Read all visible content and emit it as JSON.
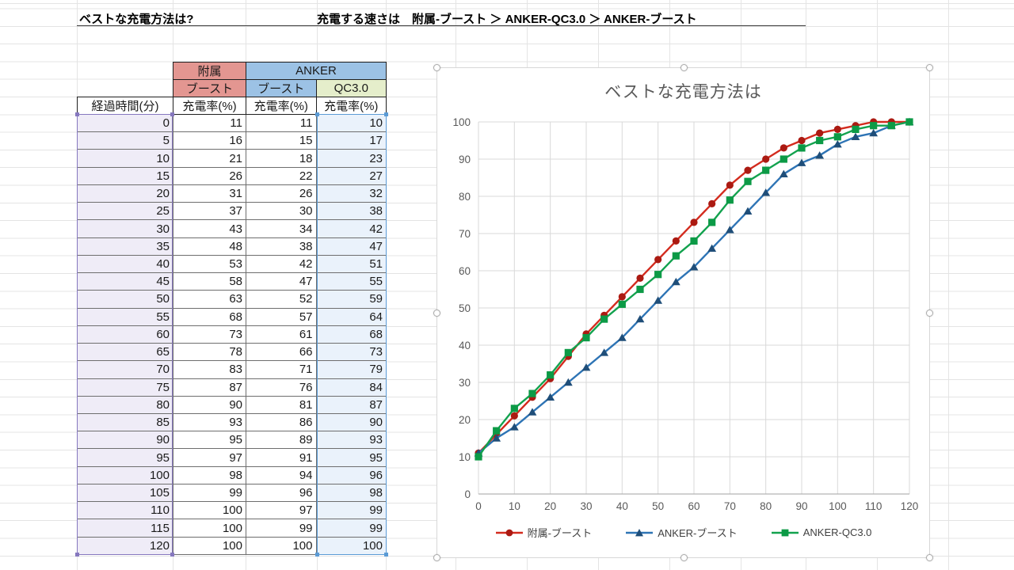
{
  "titles": {
    "question": "ベストな充電方法は?",
    "ranking": "充電する速さは　附属-ブースト ＞ ANKER-QC3.0 ＞ ANKER-ブースト"
  },
  "table": {
    "group_headers": [
      {
        "label": "附属",
        "color": "#e39691"
      },
      {
        "label": "ANKER",
        "color": "#9cc2e5"
      }
    ],
    "sub_headers": [
      {
        "label": "ブースト",
        "color": "#e39691"
      },
      {
        "label": "ブースト",
        "color": "#9cc2e5"
      },
      {
        "label": "QC3.0",
        "color": "#e5eecb"
      }
    ],
    "col_headers": [
      "経過時間(分)",
      "充電率(%)",
      "充電率(%)",
      "充電率(%)"
    ],
    "rows": [
      [
        0,
        11,
        11,
        10
      ],
      [
        5,
        16,
        15,
        17
      ],
      [
        10,
        21,
        18,
        23
      ],
      [
        15,
        26,
        22,
        27
      ],
      [
        20,
        31,
        26,
        32
      ],
      [
        25,
        37,
        30,
        38
      ],
      [
        30,
        43,
        34,
        42
      ],
      [
        35,
        48,
        38,
        47
      ],
      [
        40,
        53,
        42,
        51
      ],
      [
        45,
        58,
        47,
        55
      ],
      [
        50,
        63,
        52,
        59
      ],
      [
        55,
        68,
        57,
        64
      ],
      [
        60,
        73,
        61,
        68
      ],
      [
        65,
        78,
        66,
        73
      ],
      [
        70,
        83,
        71,
        79
      ],
      [
        75,
        87,
        76,
        84
      ],
      [
        80,
        90,
        81,
        87
      ],
      [
        85,
        93,
        86,
        90
      ],
      [
        90,
        95,
        89,
        93
      ],
      [
        95,
        97,
        91,
        95
      ],
      [
        100,
        98,
        94,
        96
      ],
      [
        105,
        99,
        96,
        98
      ],
      [
        110,
        100,
        97,
        99
      ],
      [
        115,
        100,
        99,
        99
      ],
      [
        120,
        100,
        100,
        100
      ]
    ]
  },
  "chart_data": {
    "type": "line",
    "title": "ベストな充電方法は",
    "x": [
      0,
      5,
      10,
      15,
      20,
      25,
      30,
      35,
      40,
      45,
      50,
      55,
      60,
      65,
      70,
      75,
      80,
      85,
      90,
      95,
      100,
      105,
      110,
      115,
      120
    ],
    "series": [
      {
        "name": "附属-ブースト",
        "marker": "circle",
        "line_color": "#d32b1e",
        "marker_color": "#ab1a12",
        "values": [
          11,
          16,
          21,
          26,
          31,
          37,
          43,
          48,
          53,
          58,
          63,
          68,
          73,
          78,
          83,
          87,
          90,
          93,
          95,
          97,
          98,
          99,
          100,
          100,
          100
        ]
      },
      {
        "name": "ANKER-ブースト",
        "marker": "triangle",
        "line_color": "#2e74b5",
        "marker_color": "#1f4e79",
        "values": [
          11,
          15,
          18,
          22,
          26,
          30,
          34,
          38,
          42,
          47,
          52,
          57,
          61,
          66,
          71,
          76,
          81,
          86,
          89,
          91,
          94,
          96,
          97,
          99,
          100
        ]
      },
      {
        "name": "ANKER-QC3.0",
        "marker": "square",
        "line_color": "#12a24e",
        "marker_color": "#0c9a46",
        "values": [
          10,
          17,
          23,
          27,
          32,
          38,
          42,
          47,
          51,
          55,
          59,
          64,
          68,
          73,
          79,
          84,
          87,
          90,
          93,
          95,
          96,
          98,
          99,
          99,
          100
        ]
      }
    ],
    "xlabel": "",
    "ylabel": "",
    "xlim": [
      0,
      120
    ],
    "ylim": [
      0,
      100
    ],
    "x_ticks": [
      0,
      10,
      20,
      30,
      40,
      50,
      60,
      70,
      80,
      90,
      100,
      110,
      120
    ],
    "y_ticks": [
      0,
      10,
      20,
      30,
      40,
      50,
      60,
      70,
      80,
      90,
      100
    ],
    "grid": true,
    "legend_position": "bottom",
    "text_color": "#595959",
    "grid_color": "#d9d9d9",
    "axis_color": "#b3b3b3"
  }
}
